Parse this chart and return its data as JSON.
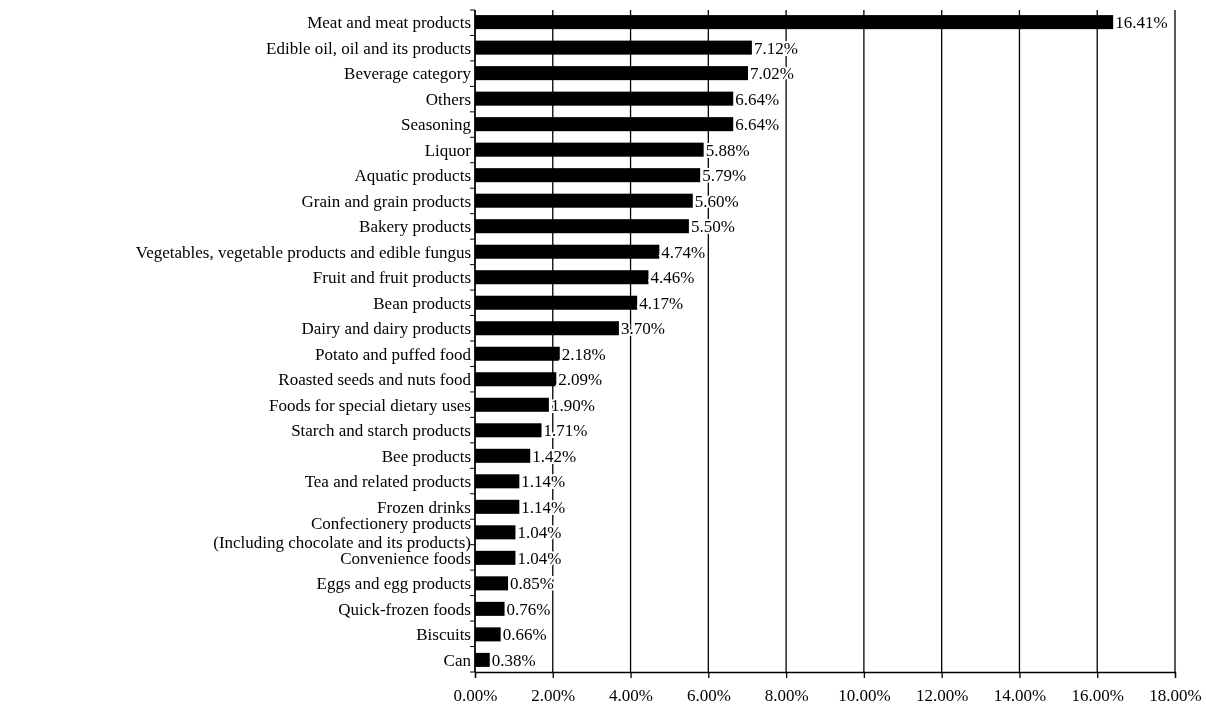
{
  "chart_data": {
    "type": "bar",
    "orientation": "horizontal",
    "categories": [
      "Meat and meat products",
      "Edible oil, oil and its products",
      "Beverage category",
      "Others",
      "Seasoning",
      "Liquor",
      "Aquatic products",
      "Grain and grain products",
      "Bakery products",
      "Vegetables, vegetable products and edible fungus",
      "Fruit and fruit products",
      "Bean products",
      "Dairy and dairy products",
      "Potato and puffed food",
      "Roasted seeds and nuts food",
      "Foods for special dietary uses",
      "Starch and starch products",
      "Bee products",
      "Tea and related products",
      "Frozen drinks",
      "Confectionery products\n(Including chocolate and its products)",
      "Convenience foods",
      "Eggs and egg products",
      "Quick-frozen foods",
      "Biscuits",
      "Can"
    ],
    "values": [
      16.41,
      7.12,
      7.02,
      6.64,
      6.64,
      5.88,
      5.79,
      5.6,
      5.5,
      4.74,
      4.46,
      4.17,
      3.7,
      2.18,
      2.09,
      1.9,
      1.71,
      1.42,
      1.14,
      1.14,
      1.04,
      1.04,
      0.85,
      0.76,
      0.66,
      0.38
    ],
    "value_labels": [
      "16.41%",
      "7.12%",
      "7.02%",
      "6.64%",
      "6.64%",
      "5.88%",
      "5.79%",
      "5.60%",
      "5.50%",
      "4.74%",
      "4.46%",
      "4.17%",
      "3.70%",
      "2.18%",
      "2.09%",
      "1.90%",
      "1.71%",
      "1.42%",
      "1.14%",
      "1.14%",
      "1.04%",
      "1.04%",
      "0.85%",
      "0.76%",
      "0.66%",
      "0.38%"
    ],
    "color": "#000000",
    "xlim": [
      0,
      18
    ],
    "xticks": [
      {
        "value": 0,
        "label": "0.00%"
      },
      {
        "value": 2,
        "label": "2.00%"
      },
      {
        "value": 4,
        "label": "4.00%"
      },
      {
        "value": 6,
        "label": "6.00%"
      },
      {
        "value": 8,
        "label": "8.00%"
      },
      {
        "value": 10,
        "label": "10.00%"
      },
      {
        "value": 12,
        "label": "12.00%"
      },
      {
        "value": 14,
        "label": "14.00%"
      },
      {
        "value": 16,
        "label": "16.00%"
      },
      {
        "value": 18,
        "label": "18.00%"
      }
    ],
    "grid": "x"
  }
}
